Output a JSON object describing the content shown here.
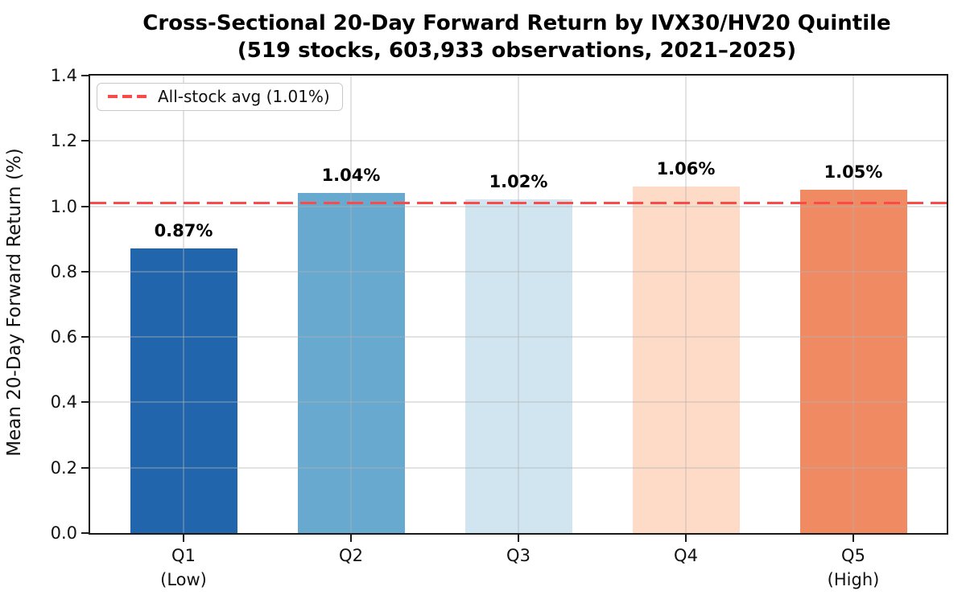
{
  "chart_data": {
    "type": "bar",
    "title_line1": "Cross-Sectional 20-Day Forward Return by IVX30/HV20 Quintile",
    "title_line2": "(519 stocks, 603,933 observations, 2021–2025)",
    "ylabel": "Mean 20-Day Forward Return (%)",
    "xlabel": "",
    "categories": [
      {
        "label": "Q1",
        "sublabel": "(Low)"
      },
      {
        "label": "Q2",
        "sublabel": ""
      },
      {
        "label": "Q3",
        "sublabel": ""
      },
      {
        "label": "Q4",
        "sublabel": ""
      },
      {
        "label": "Q5",
        "sublabel": "(High)"
      }
    ],
    "values": [
      0.87,
      1.04,
      1.02,
      1.06,
      1.05
    ],
    "bar_labels": [
      "0.87%",
      "1.04%",
      "1.02%",
      "1.06%",
      "1.05%"
    ],
    "bar_colors": [
      "#2166ac",
      "#67a9cf",
      "#d1e5f0",
      "#fddbc7",
      "#ef8a62"
    ],
    "ylim": [
      0,
      1.4
    ],
    "ytick_labels": [
      "0.0",
      "0.2",
      "0.4",
      "0.6",
      "0.8",
      "1.0",
      "1.2",
      "1.4"
    ],
    "grid": true,
    "legend_position": "upper-left",
    "reference_line": {
      "value": 1.01,
      "label": "All-stock avg (1.01%)",
      "color": "#fa4b4a",
      "style": "dashed"
    }
  }
}
